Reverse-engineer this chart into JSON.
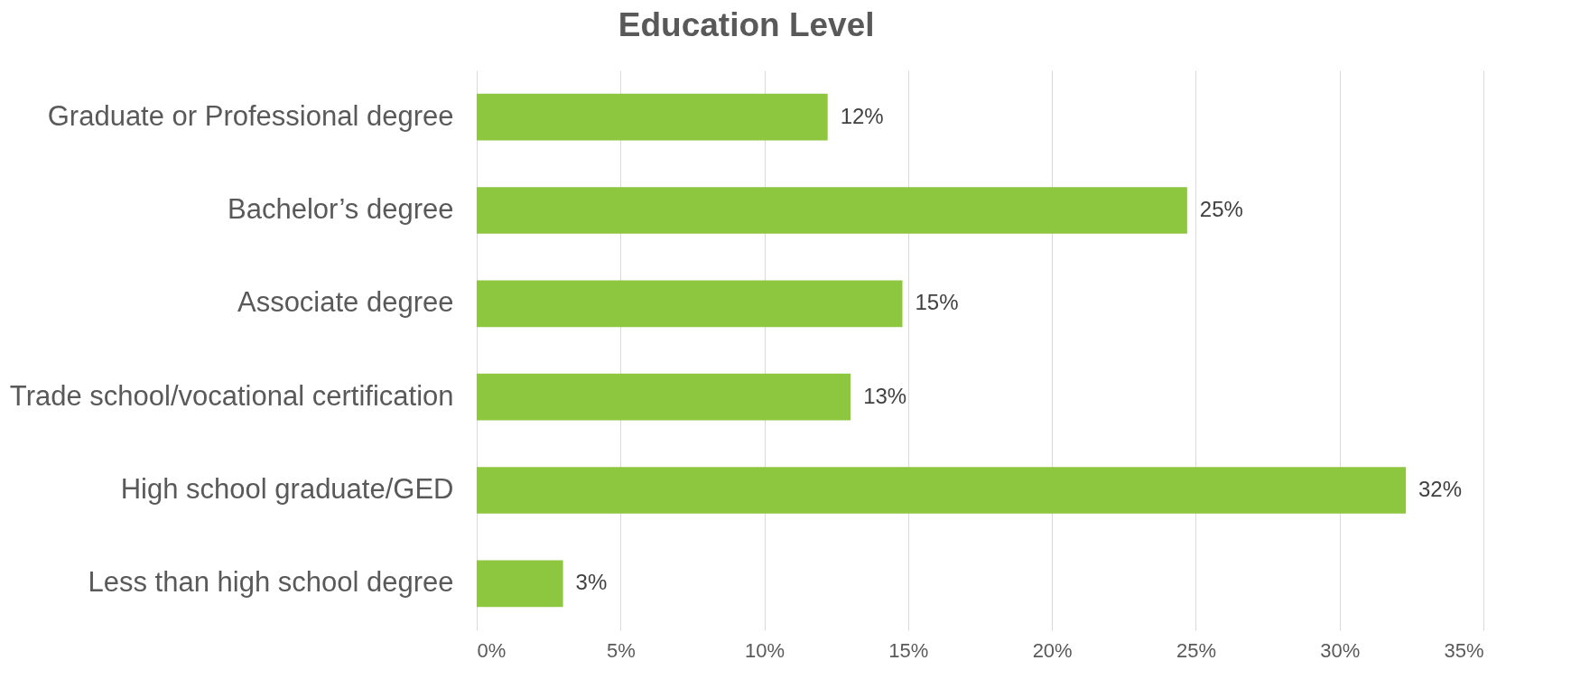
{
  "chart_data": {
    "type": "bar",
    "orientation": "horizontal",
    "title": "Education Level",
    "categories": [
      "Graduate or Professional degree",
      "Bachelor’s degree",
      "Associate degree",
      "Trade school/vocational certification",
      "High school graduate/GED",
      "Less than high school degree"
    ],
    "values": [
      12.2,
      24.7,
      14.8,
      13.0,
      32.3,
      3.0
    ],
    "value_labels": [
      "12%",
      "25%",
      "15%",
      "13%",
      "32%",
      "3%"
    ],
    "color": "#8dc63f",
    "xlim": [
      0,
      35
    ],
    "xticks": [
      {
        "value": 0,
        "label": "0%"
      },
      {
        "value": 5,
        "label": "5%"
      },
      {
        "value": 10,
        "label": "10%"
      },
      {
        "value": 15,
        "label": "15%"
      },
      {
        "value": 20,
        "label": "20%"
      },
      {
        "value": 25,
        "label": "25%"
      },
      {
        "value": 30,
        "label": "30%"
      },
      {
        "value": 35,
        "label": "35%"
      }
    ],
    "grid": "x"
  }
}
